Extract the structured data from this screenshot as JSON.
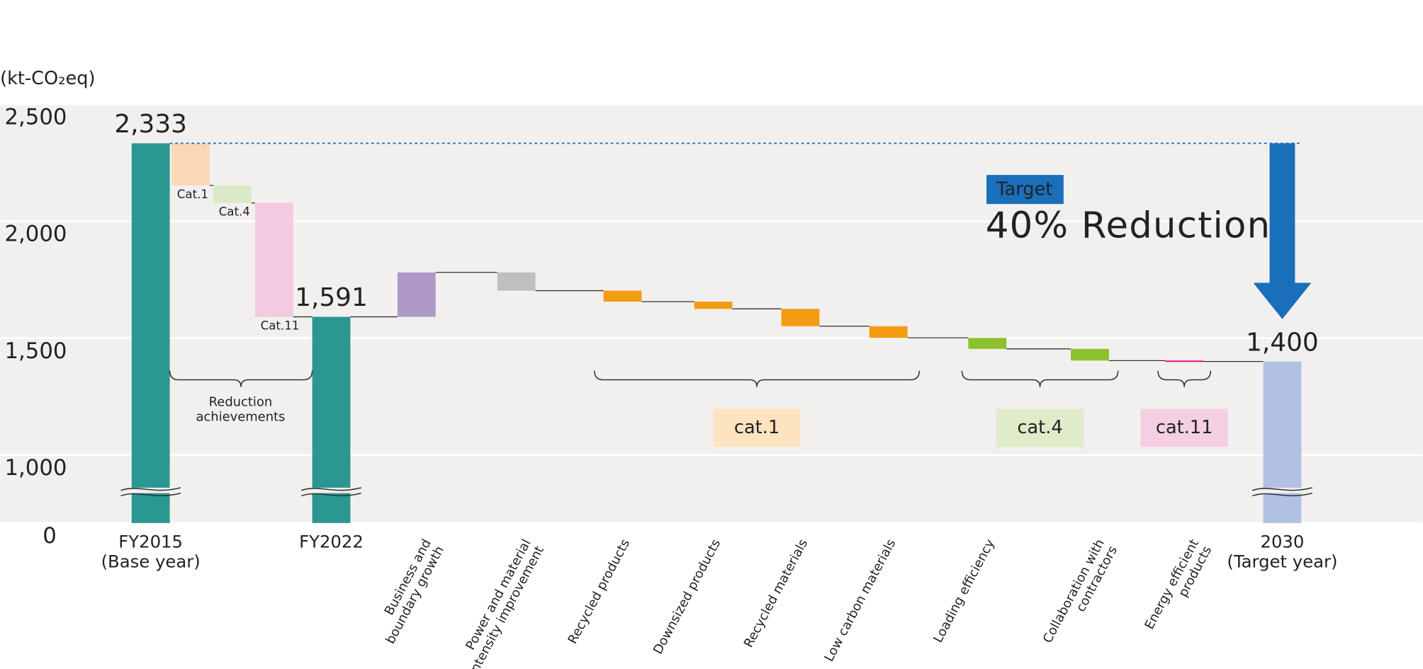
{
  "chart_data": {
    "type": "waterfall",
    "unit_label": "(kt-CO₂eq)",
    "categories": [
      "FY2015\n(Base year)",
      "Cat.1",
      "Cat.4",
      "Cat.11",
      "FY2022",
      "Business and\nboundary growth",
      "Power and material\nintensity improvement",
      "Recycled products",
      "Downsized products",
      "Recycled materials",
      "Low carbon materials",
      "Loading efficiency",
      "Collaboration with\ncontractors",
      "Energy efficient\nproducts",
      "2030\n(Target year)"
    ],
    "measure": [
      "total",
      "relative",
      "relative",
      "relative",
      "total",
      "relative",
      "relative",
      "relative",
      "relative",
      "relative",
      "relative",
      "relative",
      "relative",
      "relative",
      "total"
    ],
    "values": [
      2333,
      -180,
      -75,
      -487,
      1591,
      190,
      -78,
      -47,
      -31,
      -74,
      -50,
      -47,
      -50,
      -4,
      1400
    ],
    "value_labels": [
      "2,333",
      null,
      null,
      null,
      "1,591",
      null,
      null,
      null,
      null,
      null,
      null,
      null,
      null,
      null,
      "1,400"
    ],
    "colors": [
      "#2a9790",
      "#f9d8b5",
      "#dce9c6",
      "#f3cbe0",
      "#2a9790",
      "#ad98c8",
      "#bfbfbf",
      "#f39c12",
      "#f39c12",
      "#f39c12",
      "#f39c12",
      "#8cc12d",
      "#8cc12d",
      "#e4007f",
      "#b1c1e4"
    ],
    "ylim": [
      0,
      2500
    ],
    "axis_break": [
      0,
      1000
    ],
    "yticks": [
      0,
      {
        "value": 1000,
        "label": "1,000"
      },
      {
        "value": 1500,
        "label": "1,500"
      },
      {
        "value": 2000,
        "label": "2,000"
      },
      {
        "value": 2500,
        "label": "2,500"
      }
    ],
    "grid": true,
    "reduction_label": "Reduction\nachievements",
    "groups": [
      "cat.1",
      "cat.4",
      "cat.11"
    ],
    "group_colors": [
      "#fde3c0",
      "#e0ebc9",
      "#f5cfe1"
    ],
    "target_label": "Target",
    "target_text": "40% Reduction",
    "target_color": "#1a6fba"
  }
}
